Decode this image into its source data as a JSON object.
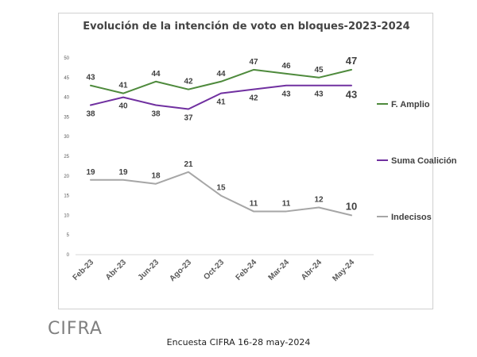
{
  "chart_data": {
    "type": "line",
    "title": "Evolución de la intención de voto en bloques-2023-2024",
    "categories": [
      "Feb-23",
      "Abr-23",
      "Jun-23",
      "Ago-23",
      "Oct-23",
      "Feb-24",
      "Mar-24",
      "Abr-24",
      "May-24"
    ],
    "ylim": [
      0,
      50
    ],
    "yticks": [
      "0",
      "5",
      "10",
      "15",
      "20",
      "25",
      "30",
      "35",
      "40",
      "45",
      "50"
    ],
    "grid": false,
    "legend_placement": "right",
    "series": [
      {
        "name": "F. Amplio",
        "color": "#4e8a3c",
        "values": [
          43,
          41,
          44,
          42,
          44,
          47,
          46,
          45,
          47
        ]
      },
      {
        "name": "Suma Coalición",
        "color": "#7030a0",
        "values": [
          38,
          40,
          38,
          37,
          41,
          42,
          43,
          43,
          43
        ]
      },
      {
        "name": "Indecisos",
        "color": "#a6a6a6",
        "values": [
          19,
          19,
          18,
          21,
          15,
          11,
          11,
          12,
          10
        ]
      }
    ]
  },
  "logo_text": "CIFRA",
  "footer_note": "Encuesta CIFRA  16-28 may-2024"
}
